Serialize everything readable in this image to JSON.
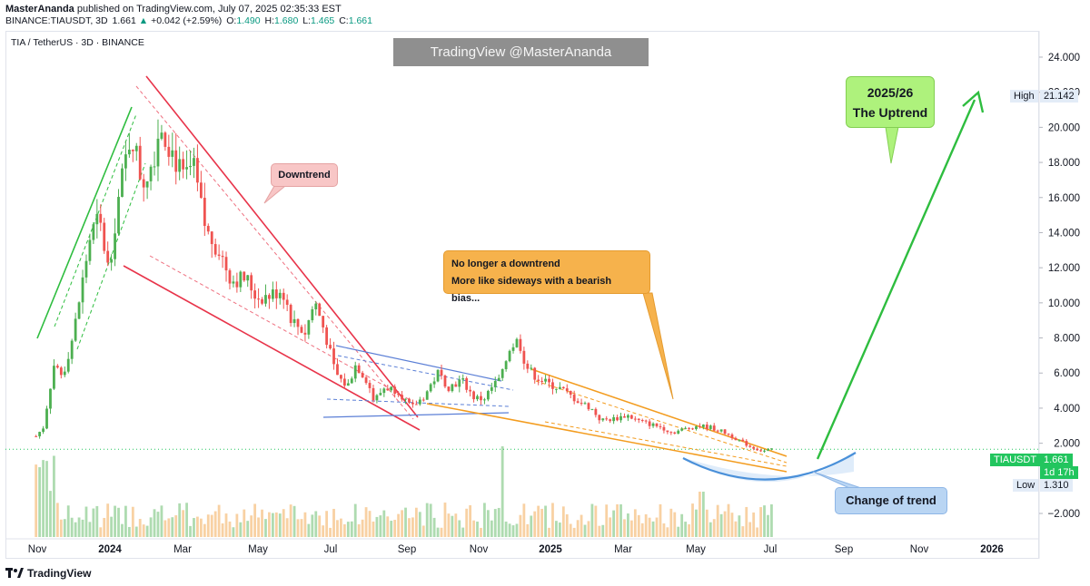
{
  "header": {
    "author": "MasterAnanda",
    "published_text": "published on TradingView.com, July 07, 2025 02:35:33 EST",
    "symbol_line": "BINANCE:TIAUSDT, 3D",
    "last": "1.661",
    "arrow": "▲",
    "change": "+0.042 (+2.59%)",
    "o_label": "O:",
    "o": "1.490",
    "h_label": "H:",
    "h": "1.680",
    "l_label": "L:",
    "l": "1.465",
    "c_label": "C:",
    "c": "1.661"
  },
  "symbol_title": "TIA / TetherUS · 3D · BINANCE",
  "watermark": "TradingView @MasterAnanda",
  "annotations": {
    "downtrend": "Downtrend",
    "sideways_1": "No longer a downtrend",
    "sideways_2": "More like sideways with a bearish bias...",
    "uptrend_1": "2025/26",
    "uptrend_2": "The Uptrend",
    "change": "Change of trend"
  },
  "price_tags": {
    "high_label": "High",
    "high_value": "21.142",
    "symbol": "TIAUSDT",
    "last_value": "1.661",
    "countdown": "1d 17h",
    "low_label": "Low",
    "low_value": "1.310"
  },
  "footer": {
    "logo_text": "TradingView"
  },
  "colors": {
    "up": "#089981",
    "down": "#f23645",
    "up_candle": "#4caf50",
    "down_candle": "#ef5350",
    "trend_green": "#2ebd3f",
    "trend_red": "#e8344a",
    "channel_blue": "#5b7fd6",
    "wedge_orange": "#f39c1f",
    "arc_blue": "#4a90d9"
  },
  "chart_data": {
    "type": "candlestick",
    "title": "TIA / TetherUS · 3D · BINANCE",
    "x_ticks": [
      "Nov",
      "2024",
      "Mar",
      "May",
      "Jul",
      "Sep",
      "Nov",
      "2025",
      "Mar",
      "May",
      "Jul",
      "Sep",
      "Nov",
      "2026"
    ],
    "y_ticks": [
      "24.000",
      "22.000",
      "20.000",
      "18.000",
      "16.000",
      "14.000",
      "12.000",
      "10.000",
      "8.000",
      "6.000",
      "4.000",
      "2.000",
      "−2.000"
    ],
    "ylim": [
      -2.8,
      24.8
    ],
    "price_path": [
      [
        "2023-10-31",
        2.4
      ],
      [
        "2023-11-06",
        2.9
      ],
      [
        "2023-11-15",
        6.5
      ],
      [
        "2023-11-22",
        5.8
      ],
      [
        "2023-12-01",
        8.2
      ],
      [
        "2023-12-08",
        11.0
      ],
      [
        "2023-12-15",
        13.8
      ],
      [
        "2023-12-22",
        14.8
      ],
      [
        "2023-12-30",
        11.9
      ],
      [
        "2024-01-08",
        16.2
      ],
      [
        "2024-01-18",
        19.8
      ],
      [
        "2024-01-27",
        16.8
      ],
      [
        "2024-02-05",
        18.2
      ],
      [
        "2024-02-11",
        20.3
      ],
      [
        "2024-02-20",
        18.8
      ],
      [
        "2024-03-01",
        17.0
      ],
      [
        "2024-03-09",
        17.8
      ],
      [
        "2024-03-20",
        14.0
      ],
      [
        "2024-03-30",
        13.1
      ],
      [
        "2024-04-10",
        11.3
      ],
      [
        "2024-04-22",
        11.4
      ],
      [
        "2024-05-01",
        10.3
      ],
      [
        "2024-05-12",
        10.4
      ],
      [
        "2024-05-22",
        10.8
      ],
      [
        "2024-05-30",
        9.0
      ],
      [
        "2024-06-10",
        8.3
      ],
      [
        "2024-06-18",
        10.1
      ],
      [
        "2024-06-26",
        8.4
      ],
      [
        "2024-07-05",
        6.0
      ],
      [
        "2024-07-15",
        5.2
      ],
      [
        "2024-07-22",
        6.5
      ],
      [
        "2024-08-01",
        5.5
      ],
      [
        "2024-08-06",
        4.4
      ],
      [
        "2024-08-15",
        5.2
      ],
      [
        "2024-08-26",
        5.0
      ],
      [
        "2024-09-06",
        4.0
      ],
      [
        "2024-09-17",
        4.7
      ],
      [
        "2024-09-28",
        6.0
      ],
      [
        "2024-10-07",
        5.2
      ],
      [
        "2024-10-18",
        5.6
      ],
      [
        "2024-10-28",
        4.6
      ],
      [
        "2024-11-05",
        4.5
      ],
      [
        "2024-11-12",
        5.2
      ],
      [
        "2024-11-20",
        5.8
      ],
      [
        "2024-11-26",
        7.4
      ],
      [
        "2024-12-04",
        7.9
      ],
      [
        "2024-12-10",
        6.4
      ],
      [
        "2024-12-18",
        5.8
      ],
      [
        "2024-12-28",
        5.4
      ],
      [
        "2025-01-08",
        5.1
      ],
      [
        "2025-01-20",
        4.5
      ],
      [
        "2025-02-02",
        4.0
      ],
      [
        "2025-02-10",
        3.3
      ],
      [
        "2025-02-22",
        3.4
      ],
      [
        "2025-03-04",
        3.6
      ],
      [
        "2025-03-12",
        3.3
      ],
      [
        "2025-03-22",
        3.1
      ],
      [
        "2025-04-02",
        2.9
      ],
      [
        "2025-04-10",
        2.6
      ],
      [
        "2025-04-20",
        2.8
      ],
      [
        "2025-05-01",
        3.0
      ],
      [
        "2025-05-12",
        2.9
      ],
      [
        "2025-05-24",
        2.6
      ],
      [
        "2025-06-04",
        2.2
      ],
      [
        "2025-06-14",
        1.8
      ],
      [
        "2025-06-24",
        1.55
      ],
      [
        "2025-07-04",
        1.661
      ]
    ],
    "volume_scale_note": "relative volume bars shown below price"
  }
}
